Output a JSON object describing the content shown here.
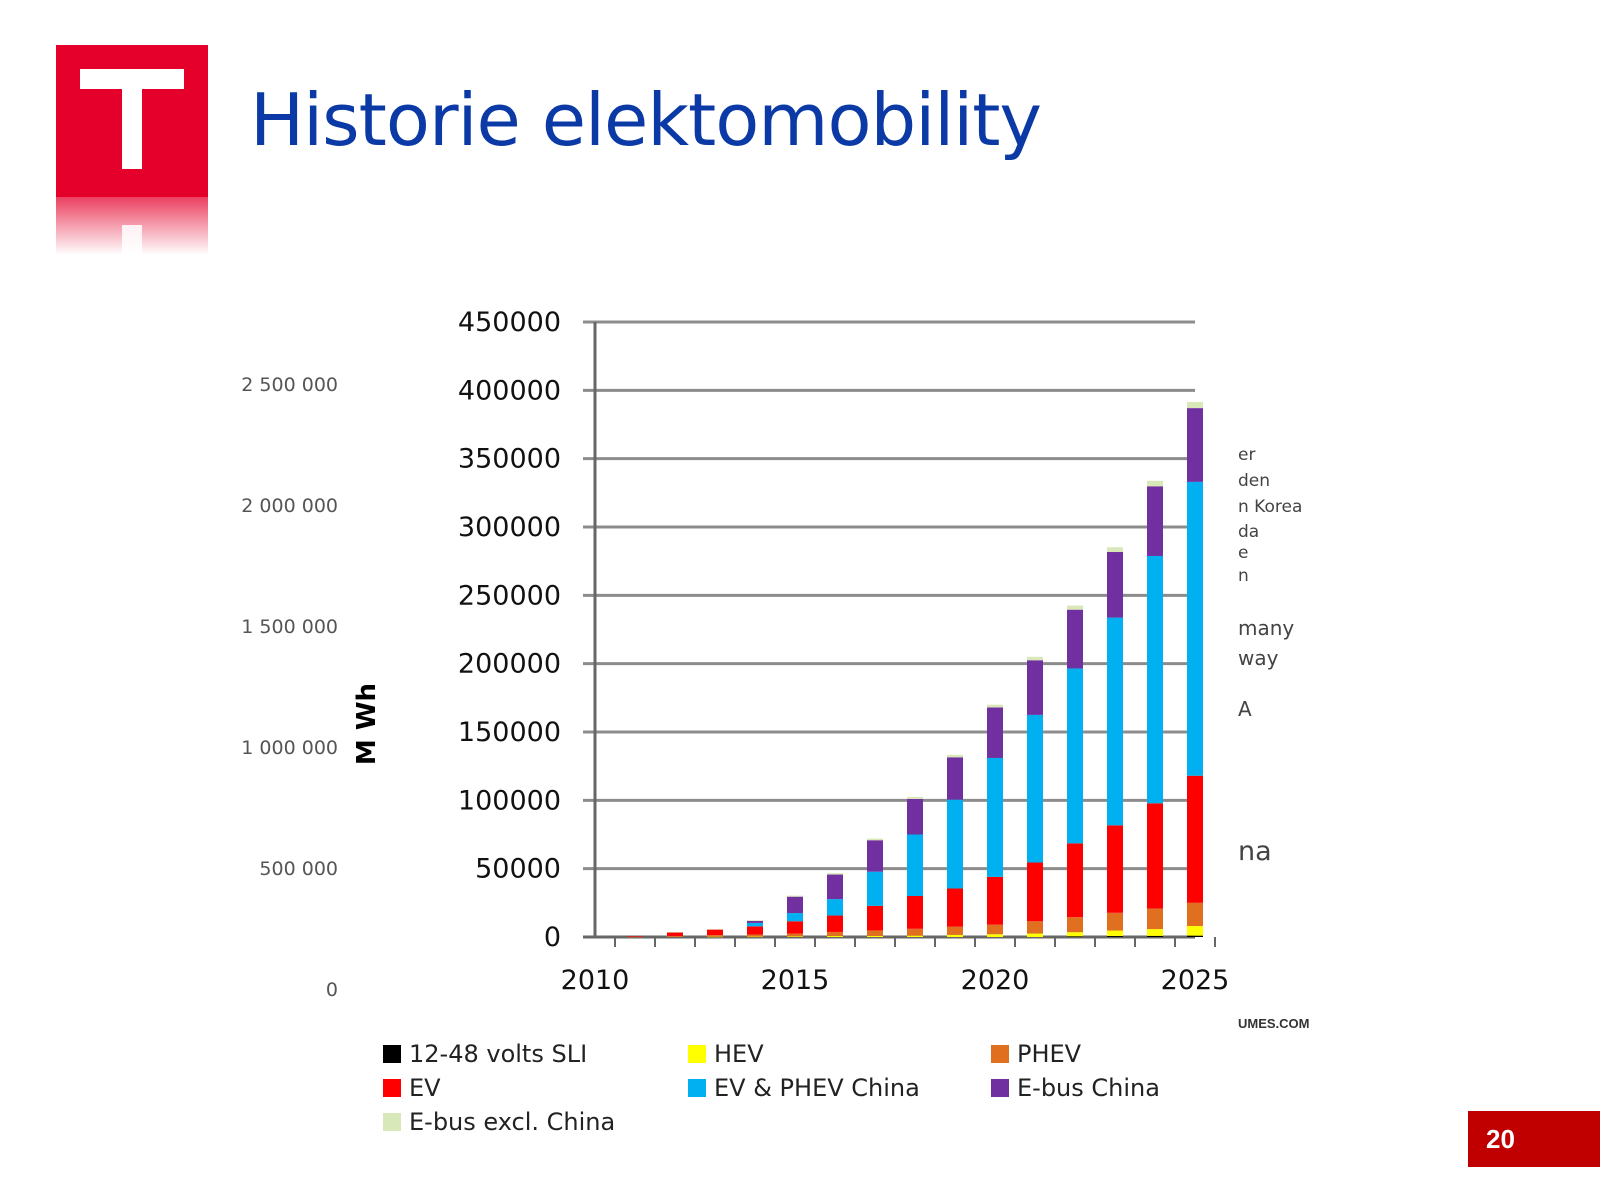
{
  "slide": {
    "title": "Historie elektomobility",
    "page_number": "20",
    "source_fragment": "UMES.COM"
  },
  "background_chart": {
    "axis_ticks": [
      "2 500 000",
      "2 000 000",
      "1 500 000",
      "1 000 000",
      "500 000",
      "0"
    ],
    "legend_fragments": [
      "er",
      "den",
      "n Korea",
      "da",
      "e",
      "n",
      "many",
      "way",
      "A",
      "na"
    ]
  },
  "chart_data": {
    "type": "bar",
    "stacked": true,
    "ylabel": "M Wh",
    "ylim": [
      0,
      450000
    ],
    "yticks": [
      0,
      50000,
      100000,
      150000,
      200000,
      250000,
      300000,
      350000,
      400000,
      450000
    ],
    "xticks": [
      2010,
      2015,
      2020,
      2025
    ],
    "categories": [
      2011,
      2012,
      2013,
      2014,
      2015,
      2016,
      2017,
      2018,
      2019,
      2020,
      2021,
      2022,
      2023,
      2024,
      2025
    ],
    "series": [
      {
        "name": "12-48 volts SLI",
        "color": "#000000",
        "values": [
          0,
          0,
          0,
          0,
          0,
          0,
          0,
          0,
          0,
          0,
          0,
          500,
          700,
          800,
          1000
        ]
      },
      {
        "name": "HEV",
        "color": "#ffff00",
        "values": [
          0,
          0,
          200,
          300,
          500,
          700,
          800,
          1000,
          1500,
          2000,
          2500,
          3000,
          4000,
          5000,
          7000
        ]
      },
      {
        "name": "PHEV",
        "color": "#e07020",
        "values": [
          200,
          800,
          1200,
          1500,
          2000,
          3000,
          4000,
          5000,
          6000,
          7000,
          9000,
          11000,
          13000,
          15000,
          17000
        ]
      },
      {
        "name": "EV",
        "color": "#ff0000",
        "values": [
          400,
          2500,
          4000,
          6000,
          9000,
          12000,
          18000,
          24000,
          28000,
          35000,
          43000,
          54000,
          64000,
          77000,
          93000
        ]
      },
      {
        "name": "EV & PHEV China",
        "color": "#00b0f0",
        "values": [
          0,
          0,
          0,
          2500,
          6000,
          12000,
          25000,
          45000,
          65000,
          87000,
          108000,
          128000,
          152000,
          181000,
          215000
        ]
      },
      {
        "name": "E-bus China",
        "color": "#7030a0",
        "values": [
          0,
          0,
          0,
          1500,
          12000,
          18000,
          23000,
          26000,
          31000,
          37000,
          40000,
          43000,
          48000,
          51000,
          54000
        ]
      },
      {
        "name": "E-bus excl. China",
        "color": "#d8e8b8",
        "values": [
          0,
          300,
          400,
          500,
          800,
          1000,
          1200,
          1500,
          1800,
          2000,
          2500,
          3000,
          3500,
          4000,
          4500
        ]
      }
    ]
  }
}
